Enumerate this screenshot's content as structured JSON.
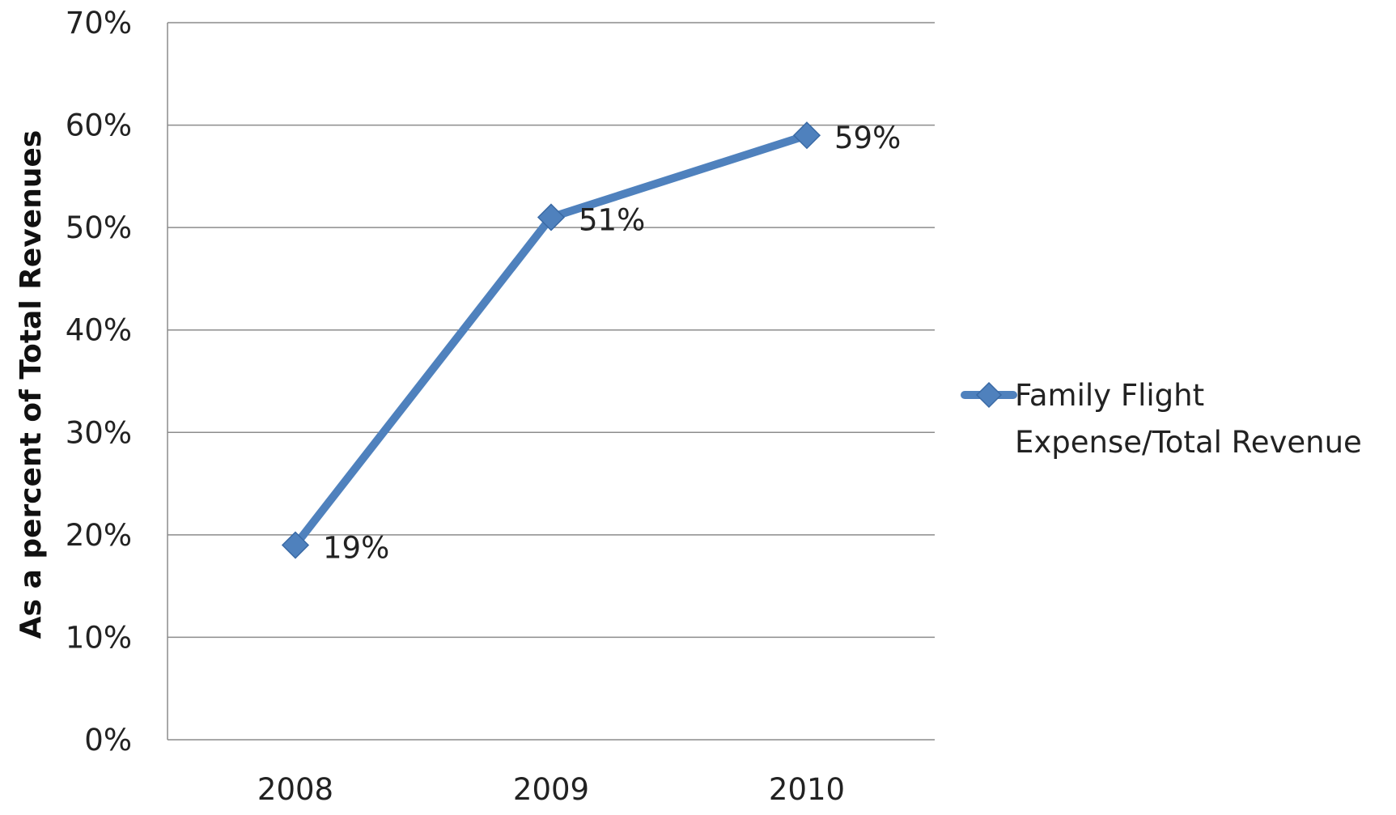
{
  "chart_data": {
    "type": "line",
    "categories": [
      "2008",
      "2009",
      "2010"
    ],
    "series": [
      {
        "name": "Family Flight Expense/Total Revenue",
        "name_lines": [
          "Family Flight",
          "Expense/Total Revenue"
        ],
        "values": [
          19,
          51,
          59
        ],
        "data_labels": [
          "19%",
          "51%",
          "59%"
        ],
        "color": "#4F81BD"
      }
    ],
    "ylabel": "As a percent of Total Revenues",
    "xlabel": "",
    "ylim": [
      0,
      70
    ],
    "yticks": [
      0,
      10,
      20,
      30,
      40,
      50,
      60,
      70
    ],
    "ytick_labels": [
      "0%",
      "10%",
      "20%",
      "30%",
      "40%",
      "50%",
      "60%",
      "70%"
    ],
    "grid": true,
    "legend_position": "right",
    "marker": "diamond"
  }
}
